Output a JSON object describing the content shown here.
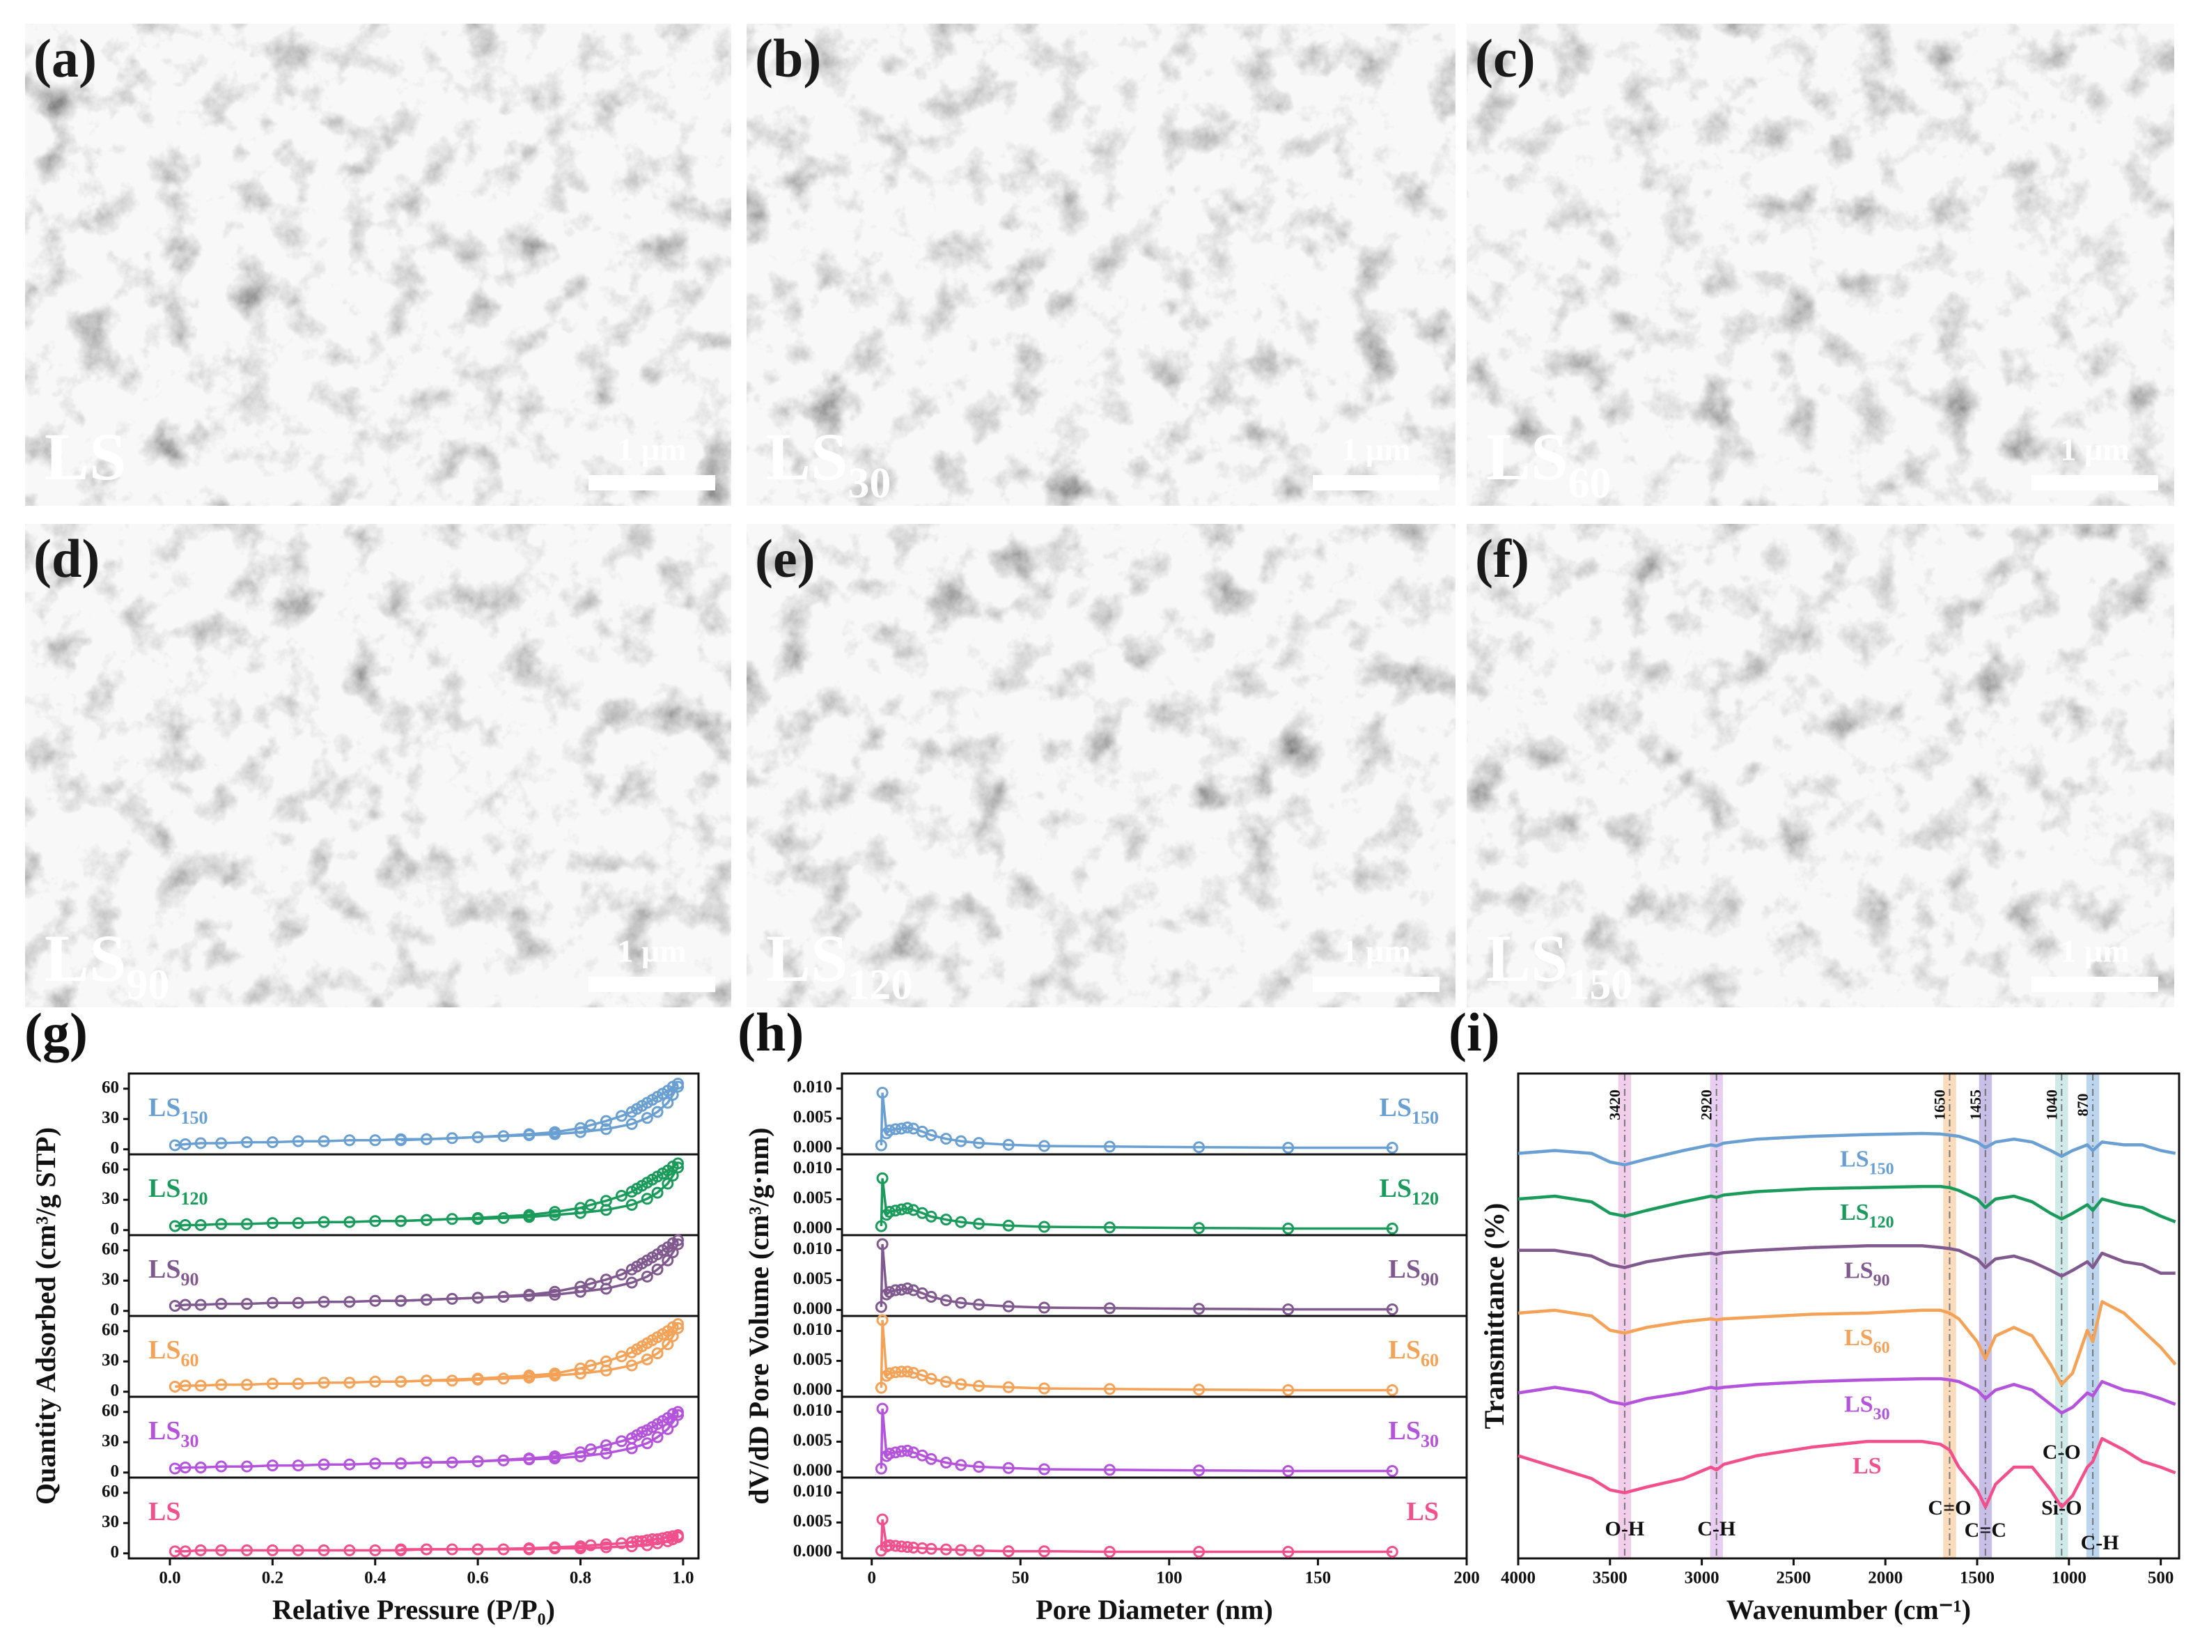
{
  "sem_panels": [
    {
      "letter": "(a)",
      "sample": "LS",
      "scale_bar": "1 µm"
    },
    {
      "letter": "(b)",
      "sample": "LS",
      "sample_sub": "30",
      "scale_bar": "1 µm"
    },
    {
      "letter": "(c)",
      "sample": "LS",
      "sample_sub": "60",
      "scale_bar": "1 µm"
    },
    {
      "letter": "(d)",
      "sample": "LS",
      "sample_sub": "90",
      "scale_bar": "1 µm"
    },
    {
      "letter": "(e)",
      "sample": "LS",
      "sample_sub": "120",
      "scale_bar": "1 µm"
    },
    {
      "letter": "(f)",
      "sample": "LS",
      "sample_sub": "150",
      "scale_bar": "1 µm"
    }
  ],
  "chart_data": [
    {
      "type": "line",
      "letter": "(g)",
      "subplots": true,
      "markers": true,
      "xlabel": "Relative Pressure (P/P₀)",
      "ylabel": "Quantity Adsorbed (cm³/g STP)",
      "xlim": [
        -0.08,
        1.03
      ],
      "ylim": [
        -5,
        75
      ],
      "xticks": [
        {
          "value": 0,
          "label": "0.0"
        },
        {
          "value": 0.2,
          "label": "0.2"
        },
        {
          "value": 0.4,
          "label": "0.4"
        },
        {
          "value": 0.6,
          "label": "0.6"
        },
        {
          "value": 0.8,
          "label": "0.8"
        },
        {
          "value": 1,
          "label": "1.0"
        }
      ],
      "yticks": [
        0,
        30,
        60
      ],
      "x": [
        0.01,
        0.03,
        0.06,
        0.1,
        0.15,
        0.2,
        0.25,
        0.3,
        0.35,
        0.4,
        0.45,
        0.5,
        0.55,
        0.6,
        0.65,
        0.7,
        0.75,
        0.8,
        0.85,
        0.9,
        0.93,
        0.95,
        0.97,
        0.98,
        0.99
      ],
      "x_desorption": [
        0.99,
        0.98,
        0.97,
        0.96,
        0.95,
        0.94,
        0.93,
        0.92,
        0.91,
        0.9,
        0.88,
        0.85,
        0.82,
        0.8,
        0.75,
        0.7,
        0.6,
        0.5,
        0.45
      ],
      "series": [
        {
          "name": "LS",
          "name_sub": "150",
          "color": "#6a9fd2",
          "values": [
            4,
            5,
            6,
            6,
            7,
            7,
            8,
            8,
            9,
            9,
            10,
            10,
            11,
            12,
            13,
            14,
            15,
            17,
            20,
            25,
            31,
            37,
            46,
            54,
            62
          ],
          "desorption": [
            65,
            62,
            58,
            55,
            52,
            49,
            46,
            43,
            40,
            37,
            33,
            28,
            24,
            21,
            17,
            15,
            12,
            10,
            9
          ]
        },
        {
          "name": "LS",
          "name_sub": "120",
          "color": "#1a9b5b",
          "values": [
            4,
            5,
            5,
            6,
            6,
            7,
            7,
            8,
            8,
            9,
            9,
            10,
            11,
            11,
            12,
            13,
            15,
            17,
            20,
            25,
            31,
            37,
            46,
            54,
            62
          ],
          "desorption": [
            66,
            63,
            59,
            56,
            53,
            50,
            47,
            44,
            41,
            38,
            34,
            29,
            25,
            22,
            18,
            15,
            12,
            10,
            9
          ]
        },
        {
          "name": "LS",
          "name_sub": "90",
          "color": "#80598f",
          "values": [
            5,
            6,
            6,
            7,
            7,
            8,
            8,
            9,
            9,
            10,
            10,
            11,
            12,
            13,
            14,
            15,
            16,
            19,
            22,
            28,
            34,
            41,
            50,
            58,
            66
          ],
          "desorption": [
            70,
            67,
            63,
            60,
            56,
            53,
            50,
            47,
            44,
            41,
            36,
            31,
            27,
            24,
            19,
            16,
            13,
            11,
            10
          ]
        },
        {
          "name": "LS",
          "name_sub": "60",
          "color": "#f3a257",
          "values": [
            5,
            6,
            6,
            7,
            7,
            8,
            8,
            9,
            9,
            10,
            10,
            11,
            11,
            12,
            13,
            14,
            16,
            18,
            21,
            26,
            32,
            38,
            47,
            55,
            63
          ],
          "desorption": [
            67,
            64,
            60,
            57,
            54,
            51,
            48,
            45,
            42,
            39,
            35,
            30,
            26,
            23,
            18,
            16,
            13,
            11,
            10
          ]
        },
        {
          "name": "LS",
          "name_sub": "30",
          "color": "#b453dc",
          "values": [
            4,
            5,
            5,
            6,
            6,
            7,
            7,
            8,
            8,
            9,
            9,
            10,
            10,
            11,
            12,
            13,
            14,
            16,
            19,
            24,
            29,
            35,
            43,
            50,
            57
          ],
          "desorption": [
            60,
            58,
            54,
            51,
            48,
            45,
            42,
            40,
            37,
            34,
            31,
            27,
            23,
            20,
            16,
            14,
            11,
            10,
            9
          ]
        },
        {
          "name": "LS",
          "color": "#f2508c",
          "values": [
            2,
            2,
            3,
            3,
            3,
            3,
            3,
            3,
            3,
            3,
            3,
            4,
            4,
            4,
            4,
            4,
            5,
            5,
            6,
            7,
            8,
            10,
            12,
            14,
            16
          ],
          "desorption": [
            18,
            17,
            16,
            15,
            14,
            14,
            13,
            12,
            12,
            11,
            10,
            9,
            8,
            7,
            6,
            5,
            4,
            4,
            4
          ]
        }
      ]
    },
    {
      "type": "line",
      "letter": "(h)",
      "subplots": true,
      "markers": true,
      "xlabel": "Pore Diameter (nm)",
      "ylabel": "dV/dD Pore Volume (cm³/g·nm)",
      "xlim": [
        -10,
        200
      ],
      "ylim": [
        -0.001,
        0.0125
      ],
      "xticks": [
        0,
        50,
        100,
        150,
        200
      ],
      "yticks": [
        {
          "value": 0,
          "label": "0.000"
        },
        {
          "value": 0.005,
          "label": "0.005"
        },
        {
          "value": 0.01,
          "label": "0.010"
        }
      ],
      "x": [
        3.2,
        3.6,
        5,
        6,
        8,
        10,
        12,
        14,
        17,
        20,
        25,
        30,
        36,
        46,
        58,
        80,
        110,
        140,
        175
      ],
      "series": [
        {
          "name": "LS",
          "name_sub": "150",
          "color": "#6a9fd2",
          "values": [
            0.0005,
            0.0093,
            0.0025,
            0.003,
            0.0032,
            0.0033,
            0.0035,
            0.0033,
            0.0028,
            0.0022,
            0.0016,
            0.0012,
            0.0009,
            0.0006,
            0.0004,
            0.0003,
            0.0002,
            0.0001,
            0.0001
          ]
        },
        {
          "name": "LS",
          "name_sub": "120",
          "color": "#1a9b5b",
          "values": [
            0.0005,
            0.0085,
            0.0024,
            0.0029,
            0.0031,
            0.0033,
            0.0035,
            0.0032,
            0.0027,
            0.0021,
            0.0016,
            0.0012,
            0.0009,
            0.0006,
            0.0004,
            0.0003,
            0.0002,
            0.0001,
            0.0001
          ]
        },
        {
          "name": "LS",
          "name_sub": "90",
          "color": "#80598f",
          "values": [
            0.0005,
            0.011,
            0.0026,
            0.003,
            0.0033,
            0.0034,
            0.0036,
            0.0033,
            0.0028,
            0.0022,
            0.0016,
            0.0012,
            0.0009,
            0.0006,
            0.0004,
            0.0003,
            0.0002,
            0.0001,
            0.0001
          ]
        },
        {
          "name": "LS",
          "name_sub": "60",
          "color": "#f3a257",
          "values": [
            0.0005,
            0.0118,
            0.0025,
            0.0029,
            0.0031,
            0.0032,
            0.0032,
            0.003,
            0.0026,
            0.002,
            0.0015,
            0.0011,
            0.0008,
            0.0006,
            0.0004,
            0.0003,
            0.0002,
            0.0001,
            0.0001
          ]
        },
        {
          "name": "LS",
          "name_sub": "30",
          "color": "#b453dc",
          "values": [
            0.0005,
            0.0105,
            0.0026,
            0.003,
            0.0032,
            0.0034,
            0.0035,
            0.0032,
            0.0027,
            0.0021,
            0.0015,
            0.0011,
            0.0008,
            0.0006,
            0.0004,
            0.0003,
            0.0002,
            0.0001,
            0.0001
          ]
        },
        {
          "name": "LS",
          "color": "#f2508c",
          "values": [
            0.0003,
            0.0055,
            0.001,
            0.0012,
            0.0011,
            0.001,
            0.0009,
            0.0008,
            0.0007,
            0.0006,
            0.0005,
            0.0004,
            0.0003,
            0.0002,
            0.0002,
            0.0001,
            0.0001,
            0.0001,
            0.0001
          ]
        }
      ]
    },
    {
      "type": "line",
      "letter": "(i)",
      "subplots": false,
      "markers": false,
      "xlabel": "Wavenumber (cm⁻¹)",
      "ylabel": "Transmittance (%)",
      "xlim": [
        4000,
        400
      ],
      "ylim": [
        15,
        100
      ],
      "xticks": [
        4000,
        3500,
        3000,
        2500,
        2000,
        1500,
        1000,
        500
      ],
      "x": [
        4000,
        3800,
        3600,
        3500,
        3420,
        3300,
        3100,
        2950,
        2920,
        2880,
        2700,
        2400,
        2100,
        1800,
        1700,
        1650,
        1600,
        1500,
        1455,
        1400,
        1300,
        1200,
        1100,
        1040,
        980,
        900,
        870,
        820,
        700,
        600,
        500,
        420
      ],
      "bands": [
        {
          "value": 3420,
          "label": "O-H",
          "color": "#e6a8d8"
        },
        {
          "value": 2920,
          "label": "C-H",
          "color": "#d6a8e6"
        },
        {
          "value": 1650,
          "label": "C=O",
          "color": "#f5c085"
        },
        {
          "value": 1455,
          "label": "C=C",
          "color": "#998bd0"
        },
        {
          "value": 1040,
          "label": "Si-O",
          "color": "#a8d9d6"
        },
        {
          "value": 870,
          "label": "C-H",
          "color": "#86b5e2"
        }
      ],
      "annotations": [
        "C-O"
      ],
      "series": [
        {
          "name": "LS",
          "name_sub": "150",
          "color": "#6a9fd2",
          "values": [
            86,
            86.5,
            86,
            84.5,
            84,
            85,
            86.5,
            87.5,
            87.3,
            87.8,
            88.5,
            89,
            89.3,
            89.5,
            89.4,
            89.2,
            89,
            88,
            87,
            88,
            88.5,
            88,
            86.5,
            85.5,
            86.5,
            87.5,
            86.5,
            88,
            87.5,
            87.5,
            86.5,
            86
          ]
        },
        {
          "name": "LS",
          "name_sub": "120",
          "color": "#1a9b5b",
          "values": [
            78,
            78.5,
            77.5,
            75.5,
            75,
            76,
            77.5,
            78.5,
            78.3,
            78.7,
            79.3,
            79.8,
            80,
            80.2,
            80.2,
            80,
            79.5,
            78,
            76.5,
            78,
            78.5,
            77.5,
            75.5,
            74.5,
            75.5,
            77,
            76,
            78,
            77,
            76.5,
            75,
            74
          ]
        },
        {
          "name": "LS",
          "name_sub": "90",
          "color": "#80598f",
          "values": [
            69,
            69,
            68,
            66.5,
            66,
            67,
            68,
            68.5,
            68.3,
            68.6,
            69,
            69.5,
            69.8,
            69.8,
            69.5,
            69.3,
            69,
            67.5,
            66,
            67.5,
            68,
            67,
            65.5,
            64.5,
            65.5,
            67,
            66,
            68.5,
            67,
            66.5,
            65,
            65
          ]
        },
        {
          "name": "LS",
          "name_sub": "60",
          "color": "#f3a257",
          "values": [
            58,
            58.5,
            57.5,
            55,
            54.5,
            55.5,
            56.5,
            57,
            56.8,
            57,
            57.3,
            57.8,
            58,
            58.5,
            58.5,
            58,
            57,
            53,
            50,
            54,
            55.5,
            54,
            49,
            45.5,
            47.5,
            55,
            53,
            60,
            58,
            55,
            52,
            49
          ]
        },
        {
          "name": "LS",
          "name_sub": "30",
          "color": "#b453dc",
          "values": [
            44,
            45,
            44,
            42.5,
            42,
            43,
            44,
            45,
            44.8,
            45,
            45.5,
            46,
            46.3,
            46.5,
            46.5,
            46.3,
            46,
            44.5,
            43,
            44.5,
            45.5,
            44.5,
            42,
            40.5,
            41.5,
            44,
            43.5,
            46,
            44.5,
            44,
            43,
            42
          ]
        },
        {
          "name": "LS",
          "color": "#f2508c",
          "values": [
            33,
            31,
            29,
            27,
            26.5,
            27.5,
            29,
            31,
            30.5,
            31.5,
            33,
            34.5,
            35.5,
            35.5,
            35,
            34,
            31,
            27,
            24,
            28,
            31,
            31,
            27,
            24,
            26,
            31,
            32,
            36,
            34,
            32,
            31,
            30
          ]
        }
      ]
    }
  ]
}
